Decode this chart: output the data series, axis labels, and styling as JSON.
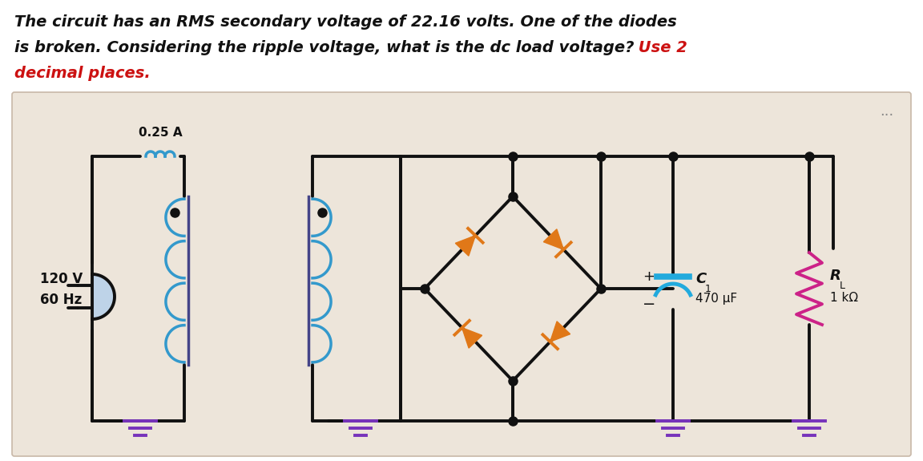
{
  "bg_color": "#ede5da",
  "page_bg": "#ffffff",
  "title_line1": "The circuit has an RMS secondary voltage of 22.16 volts. One of the diodes",
  "title_line2_black": "is broken. Considering the ripple voltage, what is the dc load voltage?",
  "title_line2_red": " Use 2",
  "title_line3": "decimal places.",
  "title_color": "#111111",
  "red_color": "#cc1111",
  "lc": "#111111",
  "diode_color": "#e07818",
  "coil_color": "#3399cc",
  "ground_color": "#7733bb",
  "cap_color": "#22aadd",
  "res_color": "#cc2288",
  "source_color": "#aaccee",
  "label_120v": "120 V",
  "label_60hz": "60 Hz",
  "label_fuse": "0.25 A",
  "label_c1": "C",
  "label_c1_sub": "1",
  "label_c1_val": "470 μF",
  "label_rl": "R",
  "label_rl_sub": "L",
  "label_rl_val": "1 kΩ",
  "dots": "..."
}
